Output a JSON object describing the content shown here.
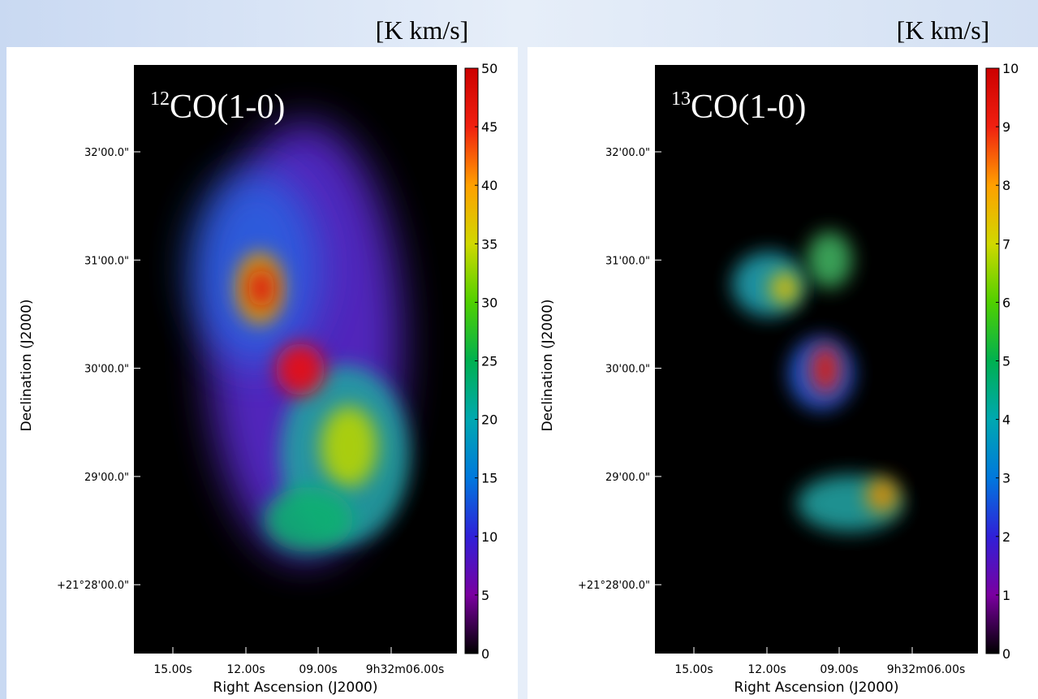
{
  "panels": [
    {
      "unit_label": "[K km/s]",
      "title_sup": "12",
      "title": "CO(1-0)",
      "colorbar_ticks": [
        0,
        5,
        10,
        15,
        20,
        25,
        30,
        35,
        40,
        45,
        50
      ],
      "y_ticks": [
        "32'00.0\"",
        "31'00.0\"",
        "30'00.0\"",
        "29'00.0\"",
        "+21°28'00.0\""
      ],
      "x_ticks": [
        "15.00s",
        "12.00s",
        "09.00s",
        "9h32m06.00s"
      ],
      "x_label": "Right Ascension (J2000)",
      "y_label": "Declination (J2000)"
    },
    {
      "unit_label": "[K km/s]",
      "title_sup": "13",
      "title": "CO(1-0)",
      "colorbar_ticks": [
        0,
        1,
        2,
        3,
        4,
        5,
        6,
        7,
        8,
        9,
        10
      ],
      "y_ticks": [
        "32'00.0\"",
        "31'00.0\"",
        "30'00.0\"",
        "29'00.0\"",
        "+21°28'00.0\""
      ],
      "x_ticks": [
        "15.00s",
        "12.00s",
        "09.00s",
        "9h32m06.00s"
      ],
      "x_label": "Right Ascension (J2000)",
      "y_label": "Declination (J2000)"
    }
  ]
}
